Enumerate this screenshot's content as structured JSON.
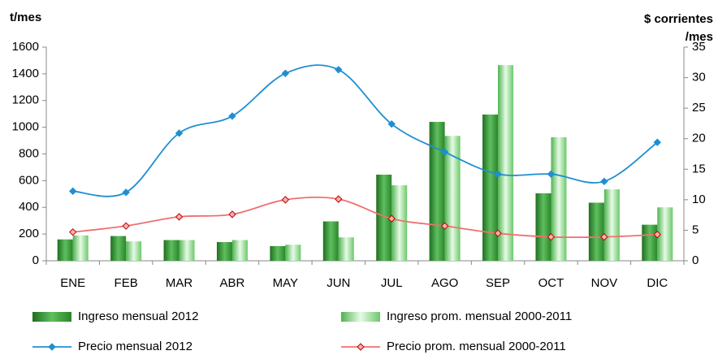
{
  "chart_data": {
    "type": "bar-line",
    "ylabel": "t/mes",
    "y2label_lines": [
      "$ corrientes",
      "/mes"
    ],
    "categories": [
      "ENE",
      "FEB",
      "MAR",
      "ABR",
      "MAY",
      "JUN",
      "JUL",
      "AGO",
      "SEP",
      "OCT",
      "NOV",
      "DIC"
    ],
    "ylim": [
      0,
      1600
    ],
    "yticks": [
      0,
      200,
      400,
      600,
      800,
      1000,
      1200,
      1400,
      1600
    ],
    "y2lim": [
      0,
      35
    ],
    "y2ticks": [
      0,
      5,
      10,
      15,
      20,
      25,
      30,
      35
    ],
    "grid": false,
    "series": [
      {
        "name": "Ingreso mensual 2012",
        "kind": "bar",
        "color": "#2e8b2e",
        "values": [
          160,
          185,
          155,
          140,
          110,
          295,
          645,
          1040,
          1095,
          505,
          435,
          270
        ]
      },
      {
        "name": "Ingreso prom. mensual 2000-2011",
        "kind": "bar",
        "color": "#8fdc8f",
        "values": [
          190,
          145,
          155,
          155,
          120,
          175,
          565,
          935,
          1465,
          925,
          535,
          400
        ]
      },
      {
        "name": "Precio mensual 2012",
        "kind": "line",
        "axis": "y2",
        "color": "#1f8fd0",
        "values": [
          11.4,
          11.2,
          20.9,
          23.7,
          30.7,
          31.3,
          22.4,
          17.8,
          14.2,
          14.2,
          13.0,
          19.4
        ]
      },
      {
        "name": "Precio prom. mensual 2000-2011",
        "kind": "line",
        "axis": "y2",
        "color": "#f07070",
        "values": [
          4.7,
          5.7,
          7.2,
          7.6,
          10.0,
          10.1,
          6.9,
          5.7,
          4.5,
          3.9,
          3.9,
          4.3
        ]
      }
    ]
  }
}
